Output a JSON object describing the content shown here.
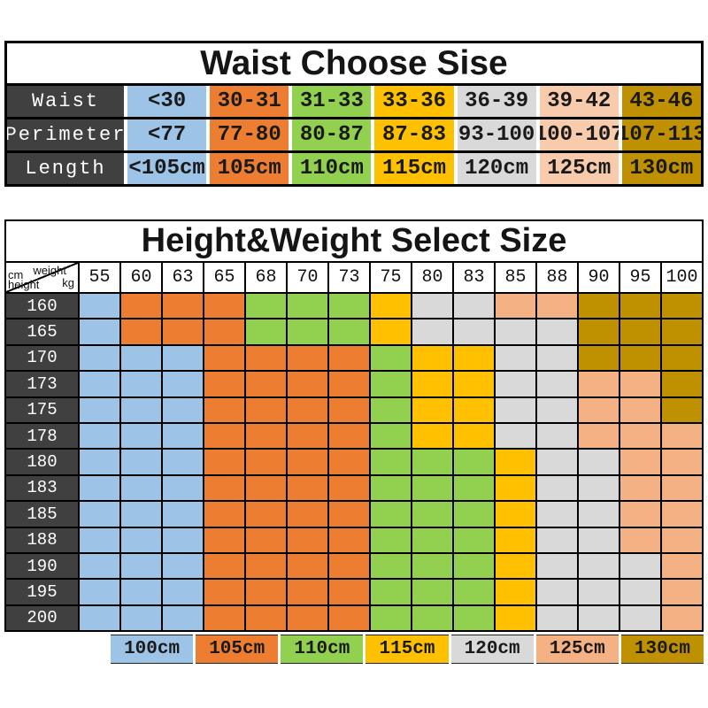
{
  "palette": {
    "blue": "#9DC3E6",
    "orange": "#ED7D31",
    "green": "#92D050",
    "yellow": "#FFC000",
    "gray": "#D9D9D9",
    "peach": "#F4B183",
    "peach_light": "#F8CBAD",
    "olive": "#BF9000",
    "header_dark": "#404040",
    "grid": "#000000"
  },
  "chart_data": [
    {
      "type": "table",
      "title": "Waist Choose Sise",
      "column_colors": [
        "blue",
        "orange",
        "green",
        "yellow",
        "gray",
        "peach_light",
        "olive"
      ],
      "rows": [
        {
          "label": "Waist",
          "values": [
            "<30",
            "30-31",
            "31-33",
            "33-36",
            "36-39",
            "39-42",
            "43-46"
          ]
        },
        {
          "label": "Perimeter",
          "values": [
            "<77",
            "77-80",
            "80-87",
            "87-83",
            "93-100",
            "100-107",
            "107-113"
          ]
        },
        {
          "label": "Length",
          "values": [
            "<105cm",
            "105cm",
            "110cm",
            "115cm",
            "120cm",
            "125cm",
            "130cm"
          ]
        }
      ]
    },
    {
      "type": "heatmap",
      "title": "Height&Weight Select Size",
      "corner": {
        "col_axis": "weight",
        "col_unit": "kg",
        "row_unit": "cm",
        "row_axis": "height"
      },
      "x_weights_kg": [
        "55",
        "60",
        "63",
        "65",
        "68",
        "70",
        "73",
        "75",
        "80",
        "83",
        "85",
        "88",
        "90",
        "95",
        "100"
      ],
      "y_heights_cm": [
        "160",
        "165",
        "170",
        "173",
        "175",
        "178",
        "180",
        "183",
        "185",
        "188",
        "190",
        "195",
        "200"
      ],
      "cell_size": [
        [
          "100cm",
          "105cm",
          "105cm",
          "105cm",
          "110cm",
          "110cm",
          "110cm",
          "115cm",
          "120cm",
          "120cm",
          "125cm",
          "125cm",
          "130cm",
          "130cm",
          "130cm"
        ],
        [
          "100cm",
          "105cm",
          "105cm",
          "105cm",
          "110cm",
          "110cm",
          "110cm",
          "115cm",
          "120cm",
          "120cm",
          "120cm",
          "120cm",
          "130cm",
          "130cm",
          "130cm"
        ],
        [
          "100cm",
          "100cm",
          "100cm",
          "105cm",
          "105cm",
          "105cm",
          "105cm",
          "110cm",
          "115cm",
          "115cm",
          "120cm",
          "120cm",
          "130cm",
          "130cm",
          "130cm"
        ],
        [
          "100cm",
          "100cm",
          "100cm",
          "105cm",
          "105cm",
          "105cm",
          "105cm",
          "110cm",
          "115cm",
          "115cm",
          "120cm",
          "120cm",
          "125cm",
          "125cm",
          "130cm"
        ],
        [
          "100cm",
          "100cm",
          "100cm",
          "105cm",
          "105cm",
          "105cm",
          "105cm",
          "110cm",
          "115cm",
          "115cm",
          "120cm",
          "120cm",
          "125cm",
          "125cm",
          "130cm"
        ],
        [
          "100cm",
          "100cm",
          "100cm",
          "105cm",
          "105cm",
          "105cm",
          "105cm",
          "110cm",
          "115cm",
          "115cm",
          "120cm",
          "120cm",
          "125cm",
          "125cm",
          "125cm"
        ],
        [
          "100cm",
          "100cm",
          "100cm",
          "105cm",
          "105cm",
          "105cm",
          "105cm",
          "110cm",
          "110cm",
          "110cm",
          "115cm",
          "120cm",
          "120cm",
          "125cm",
          "125cm"
        ],
        [
          "100cm",
          "100cm",
          "100cm",
          "105cm",
          "105cm",
          "105cm",
          "105cm",
          "110cm",
          "110cm",
          "110cm",
          "115cm",
          "120cm",
          "120cm",
          "125cm",
          "125cm"
        ],
        [
          "100cm",
          "100cm",
          "100cm",
          "105cm",
          "105cm",
          "105cm",
          "105cm",
          "110cm",
          "110cm",
          "110cm",
          "115cm",
          "120cm",
          "120cm",
          "125cm",
          "125cm"
        ],
        [
          "100cm",
          "100cm",
          "100cm",
          "105cm",
          "105cm",
          "105cm",
          "105cm",
          "110cm",
          "110cm",
          "110cm",
          "115cm",
          "120cm",
          "120cm",
          "125cm",
          "125cm"
        ],
        [
          "100cm",
          "100cm",
          "100cm",
          "105cm",
          "105cm",
          "105cm",
          "105cm",
          "110cm",
          "110cm",
          "110cm",
          "115cm",
          "120cm",
          "120cm",
          "120cm",
          "125cm"
        ],
        [
          "100cm",
          "100cm",
          "100cm",
          "105cm",
          "105cm",
          "105cm",
          "105cm",
          "110cm",
          "110cm",
          "110cm",
          "115cm",
          "120cm",
          "120cm",
          "120cm",
          "125cm"
        ],
        [
          "100cm",
          "100cm",
          "100cm",
          "105cm",
          "105cm",
          "105cm",
          "105cm",
          "110cm",
          "110cm",
          "110cm",
          "115cm",
          "120cm",
          "120cm",
          "120cm",
          "125cm"
        ]
      ],
      "legend": [
        {
          "label": "100cm",
          "color": "blue"
        },
        {
          "label": "105cm",
          "color": "orange"
        },
        {
          "label": "110cm",
          "color": "green"
        },
        {
          "label": "115cm",
          "color": "yellow"
        },
        {
          "label": "120cm",
          "color": "gray"
        },
        {
          "label": "125cm",
          "color": "peach"
        },
        {
          "label": "130cm",
          "color": "olive"
        }
      ]
    }
  ]
}
